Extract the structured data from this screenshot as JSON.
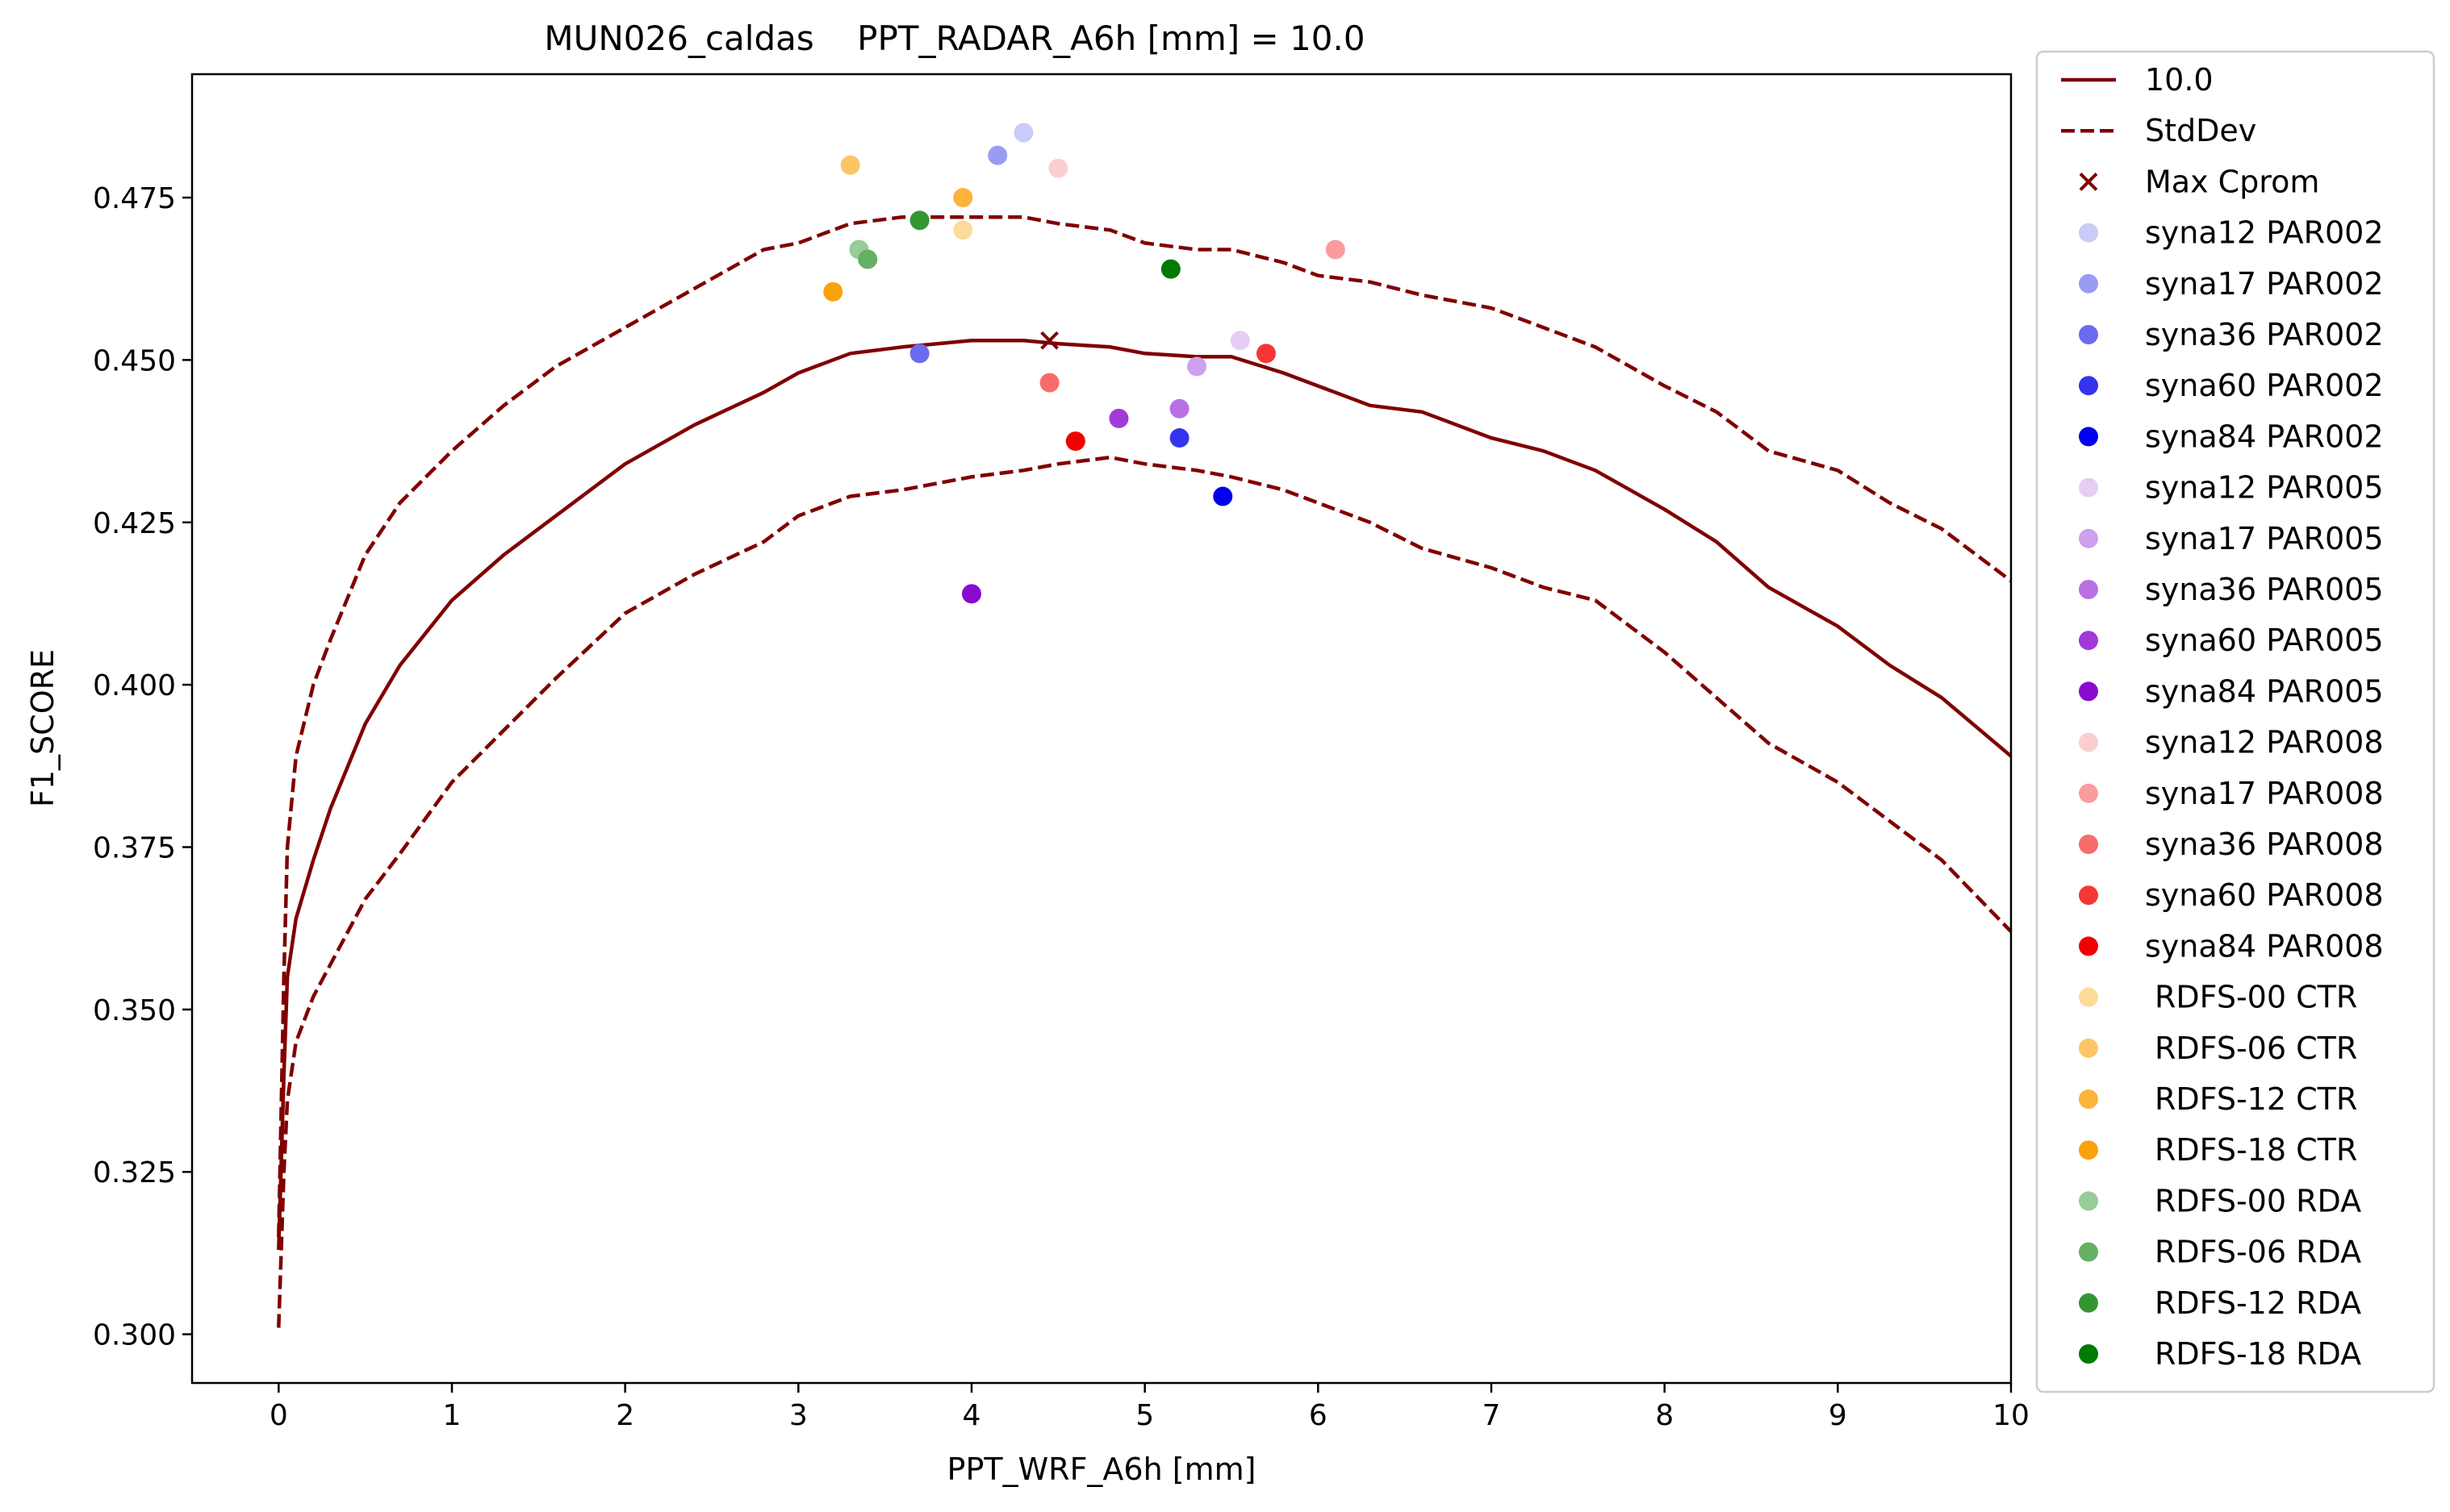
{
  "chart_data": {
    "type": "line",
    "title": "MUN026_caldas    PPT_RADAR_A6h [mm] = 10.0",
    "xlabel": "PPT_WRF_A6h [mm]",
    "ylabel": "F1_SCORE",
    "xlim": [
      -0.5,
      10
    ],
    "ylim": [
      0.2925,
      0.494
    ],
    "xticks": [
      0,
      1,
      2,
      3,
      4,
      5,
      6,
      7,
      8,
      9,
      10
    ],
    "yticks": [
      0.3,
      0.325,
      0.35,
      0.375,
      0.4,
      0.425,
      0.45,
      0.475
    ],
    "ytick_labels": [
      "0.300",
      "0.325",
      "0.350",
      "0.375",
      "0.400",
      "0.425",
      "0.450",
      "0.475"
    ],
    "xtick_labels": [
      "0",
      "1",
      "2",
      "3",
      "4",
      "5",
      "6",
      "7",
      "8",
      "9",
      "10"
    ],
    "grid": false,
    "legend_placement": "outside-right",
    "line_color": "#800000",
    "curve": {
      "name": "10.0",
      "x": [
        0,
        0.03,
        0.05,
        0.1,
        0.2,
        0.3,
        0.5,
        0.7,
        1.0,
        1.3,
        1.6,
        2.0,
        2.4,
        2.8,
        3.0,
        3.3,
        3.6,
        4.0,
        4.3,
        4.5,
        4.8,
        5.0,
        5.3,
        5.5,
        5.8,
        6.0,
        6.3,
        6.6,
        7.0,
        7.3,
        7.6,
        8.0,
        8.3,
        8.6,
        9.0,
        9.3,
        9.6,
        10.0
      ],
      "y": [
        0.313,
        0.34,
        0.355,
        0.364,
        0.373,
        0.381,
        0.394,
        0.403,
        0.413,
        0.42,
        0.426,
        0.434,
        0.44,
        0.445,
        0.448,
        0.451,
        0.452,
        0.453,
        0.453,
        0.4525,
        0.452,
        0.451,
        0.4505,
        0.4505,
        0.448,
        0.446,
        0.443,
        0.442,
        0.438,
        0.436,
        0.433,
        0.427,
        0.422,
        0.415,
        0.409,
        0.403,
        0.398,
        0.389
      ]
    },
    "stddev_upper": {
      "name": "StdDev",
      "x": [
        0,
        0.03,
        0.05,
        0.1,
        0.2,
        0.3,
        0.5,
        0.7,
        1.0,
        1.3,
        1.6,
        2.0,
        2.4,
        2.8,
        3.0,
        3.3,
        3.6,
        4.0,
        4.3,
        4.5,
        4.8,
        5.0,
        5.3,
        5.5,
        5.8,
        6.0,
        6.3,
        6.6,
        7.0,
        7.3,
        7.6,
        8.0,
        8.3,
        8.6,
        9.0,
        9.3,
        9.6,
        10.0
      ],
      "y": [
        0.315,
        0.355,
        0.375,
        0.389,
        0.4,
        0.407,
        0.42,
        0.428,
        0.436,
        0.443,
        0.449,
        0.455,
        0.461,
        0.467,
        0.468,
        0.471,
        0.472,
        0.472,
        0.472,
        0.471,
        0.47,
        0.468,
        0.467,
        0.467,
        0.465,
        0.463,
        0.462,
        0.46,
        0.458,
        0.455,
        0.452,
        0.446,
        0.442,
        0.436,
        0.433,
        0.428,
        0.424,
        0.416
      ]
    },
    "stddev_lower": {
      "x": [
        0,
        0.03,
        0.05,
        0.1,
        0.2,
        0.3,
        0.5,
        0.7,
        1.0,
        1.3,
        1.6,
        2.0,
        2.4,
        2.8,
        3.0,
        3.3,
        3.6,
        4.0,
        4.3,
        4.5,
        4.8,
        5.0,
        5.3,
        5.5,
        5.8,
        6.0,
        6.3,
        6.6,
        7.0,
        7.3,
        7.6,
        8.0,
        8.3,
        8.6,
        9.0,
        9.3,
        9.6,
        10.0
      ],
      "y": [
        0.301,
        0.325,
        0.336,
        0.345,
        0.352,
        0.357,
        0.367,
        0.374,
        0.385,
        0.393,
        0.401,
        0.411,
        0.417,
        0.422,
        0.426,
        0.429,
        0.43,
        0.432,
        0.433,
        0.434,
        0.435,
        0.434,
        0.433,
        0.432,
        0.43,
        0.428,
        0.425,
        0.421,
        0.418,
        0.415,
        0.413,
        0.405,
        0.398,
        0.391,
        0.385,
        0.379,
        0.373,
        0.362
      ]
    },
    "max_point": {
      "name": "Max Cprom",
      "x": 4.45,
      "y": 0.453,
      "color": "#800000"
    },
    "points": [
      {
        "name": "syna12 PAR002",
        "x": 4.3,
        "y": 0.485,
        "color": "#c9ccf7"
      },
      {
        "name": "syna17 PAR002",
        "x": 4.15,
        "y": 0.4815,
        "color": "#9a9bf2"
      },
      {
        "name": "syna36 PAR002",
        "x": 3.7,
        "y": 0.451,
        "color": "#6b6bf0"
      },
      {
        "name": "syna60 PAR002",
        "x": 5.2,
        "y": 0.438,
        "color": "#3434ee"
      },
      {
        "name": "syna84 PAR002",
        "x": 5.45,
        "y": 0.429,
        "color": "#0000ee"
      },
      {
        "name": "syna12 PAR005",
        "x": 5.55,
        "y": 0.453,
        "color": "#e6cdf4"
      },
      {
        "name": "syna17 PAR005",
        "x": 5.3,
        "y": 0.449,
        "color": "#cfa0ed"
      },
      {
        "name": "syna36 PAR005",
        "x": 5.2,
        "y": 0.4425,
        "color": "#b870e4"
      },
      {
        "name": "syna60 PAR005",
        "x": 4.85,
        "y": 0.441,
        "color": "#a13ad9"
      },
      {
        "name": "syna84 PAR005",
        "x": 4.0,
        "y": 0.414,
        "color": "#8a0ad0"
      },
      {
        "name": "syna12 PAR008",
        "x": 4.5,
        "y": 0.4795,
        "color": "#fccfcf"
      },
      {
        "name": "syna17 PAR008",
        "x": 6.1,
        "y": 0.467,
        "color": "#fb9c9c"
      },
      {
        "name": "syna36 PAR008",
        "x": 4.45,
        "y": 0.4465,
        "color": "#f86b6b"
      },
      {
        "name": "syna60 PAR008",
        "x": 5.7,
        "y": 0.451,
        "color": "#f53636"
      },
      {
        "name": "syna84 PAR008",
        "x": 4.6,
        "y": 0.4375,
        "color": "#f20000"
      },
      {
        "name": "RDFS-00 CTR",
        "x": 3.95,
        "y": 0.47,
        "color": "#fddb9b"
      },
      {
        "name": "RDFS-06 CTR",
        "x": 3.3,
        "y": 0.48,
        "color": "#fcc667"
      },
      {
        "name": "RDFS-12 CTR",
        "x": 3.95,
        "y": 0.475,
        "color": "#fbb33a"
      },
      {
        "name": "RDFS-18 CTR",
        "x": 3.2,
        "y": 0.4605,
        "color": "#fba10b"
      },
      {
        "name": "RDFS-00 RDA",
        "x": 3.35,
        "y": 0.467,
        "color": "#98cc98"
      },
      {
        "name": "RDFS-06 RDA",
        "x": 3.4,
        "y": 0.4655,
        "color": "#64b064"
      },
      {
        "name": "RDFS-12 RDA",
        "x": 3.7,
        "y": 0.4715,
        "color": "#339633"
      },
      {
        "name": "RDFS-18 RDA",
        "x": 5.15,
        "y": 0.464,
        "color": "#007a00"
      }
    ]
  }
}
